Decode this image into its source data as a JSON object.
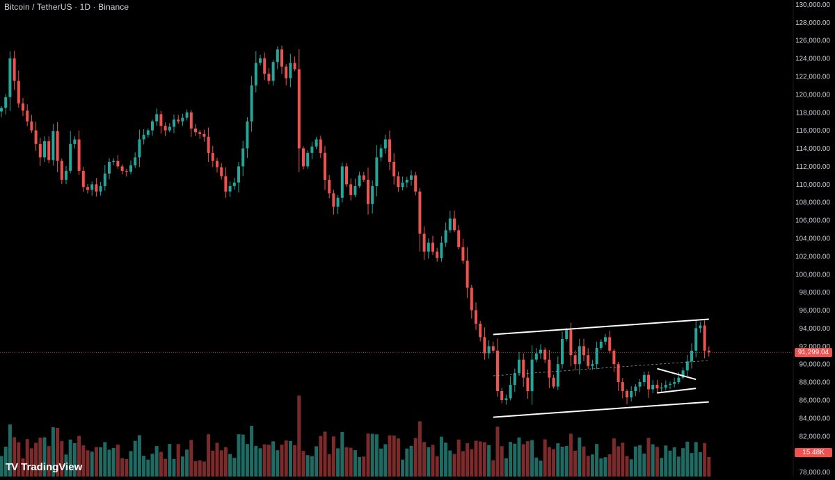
{
  "header": {
    "title": "Bitcoin / TetherUS · 1D · Binance"
  },
  "branding": {
    "logo_mark": "TV",
    "logo_text": "TradingView"
  },
  "colors": {
    "up": "#26a69a",
    "down": "#ef5350",
    "up_vol": "#1f6b63",
    "down_vol": "#7c2a2a",
    "background": "#000000",
    "axis_text": "#d1d4dc",
    "drawing": "#ffffff"
  },
  "tags": {
    "last_price": "91,299.04",
    "volume": "15.48K"
  },
  "chart_data": {
    "type": "candlestick",
    "symbol": "Bitcoin / TetherUS",
    "interval": "1D",
    "exchange": "Binance",
    "y_ticks": [
      "130,000.00",
      "128,000.00",
      "126,000.00",
      "124,000.00",
      "122,000.00",
      "120,000.00",
      "118,000.00",
      "116,000.00",
      "114,000.00",
      "112,000.00",
      "110,000.00",
      "108,000.00",
      "106,000.00",
      "104,000.00",
      "102,000.00",
      "100,000.00",
      "98,000.00",
      "96,000.00",
      "94,000.00",
      "92,000.00",
      "90,000.00",
      "88,000.00",
      "86,000.00",
      "84,000.00",
      "82,000.00",
      "80,000.00",
      "78,000.00"
    ],
    "ylim": [
      77500,
      130500
    ],
    "last_price": 91299.04,
    "last_volume": "15.48K",
    "grid": false,
    "closes": [
      118500,
      119700,
      124000,
      121500,
      119000,
      118200,
      117000,
      116000,
      114500,
      113000,
      114800,
      112700,
      115900,
      112600,
      110500,
      111500,
      114500,
      115000,
      111500,
      109700,
      109400,
      110000,
      109200,
      109800,
      111200,
      112500,
      112600,
      112000,
      111500,
      111400,
      112100,
      113000,
      115000,
      115500,
      116000,
      117000,
      117800,
      116500,
      116000,
      116400,
      117200,
      117000,
      117400,
      118000,
      116200,
      115800,
      115600,
      115300,
      113500,
      112600,
      111900,
      110900,
      109200,
      109800,
      110200,
      112000,
      114000,
      117000,
      121000,
      123500,
      124000,
      122300,
      121500,
      123600,
      125000,
      123100,
      121800,
      123500,
      122800,
      114000,
      112000,
      113500,
      114200,
      115000,
      113500,
      110500,
      109000,
      107500,
      108500,
      112000,
      110000,
      108800,
      109800,
      111000,
      110500,
      107800,
      109800,
      113000,
      114000,
      115000,
      112500,
      110900,
      109700,
      110200,
      110500,
      111000,
      109200,
      104500,
      102500,
      103500,
      102500,
      101800,
      103500,
      104900,
      106200,
      104900,
      103000,
      101500,
      98500,
      96000,
      94500,
      93000,
      91200,
      92000,
      91500,
      87000,
      86000,
      86200,
      87700,
      89000,
      90500,
      88500,
      87000,
      90500,
      91200,
      91600,
      90500,
      88500,
      87500,
      90000,
      92800,
      93800,
      91000,
      90000,
      92000,
      91000,
      89800,
      90000,
      91800,
      92500,
      93000,
      91500,
      90000,
      88000,
      87000,
      86300,
      87000,
      87500,
      88000,
      88800,
      87200,
      87700,
      87300,
      87400,
      87700,
      87800,
      88000,
      88500,
      89300,
      90300,
      91500,
      94000,
      94300,
      91500,
      91299
    ],
    "annotations": [
      {
        "type": "line",
        "label": "channel-upper",
        "from": {
          "index": 114,
          "price": 93300
        },
        "to": {
          "index": 164,
          "price": 95000
        }
      },
      {
        "type": "line",
        "label": "channel-lower",
        "from": {
          "index": 114,
          "price": 84100
        },
        "to": {
          "index": 164,
          "price": 85800
        }
      },
      {
        "type": "dashed-line",
        "label": "channel-mid",
        "from": {
          "index": 114,
          "price": 88700
        },
        "to": {
          "index": 164,
          "price": 90400
        }
      },
      {
        "type": "line",
        "label": "wedge-upper",
        "from": {
          "index": 152,
          "price": 89500
        },
        "to": {
          "index": 161,
          "price": 88300
        }
      },
      {
        "type": "line",
        "label": "wedge-lower",
        "from": {
          "index": 152,
          "price": 86800
        },
        "to": {
          "index": 161,
          "price": 87300
        }
      }
    ]
  }
}
